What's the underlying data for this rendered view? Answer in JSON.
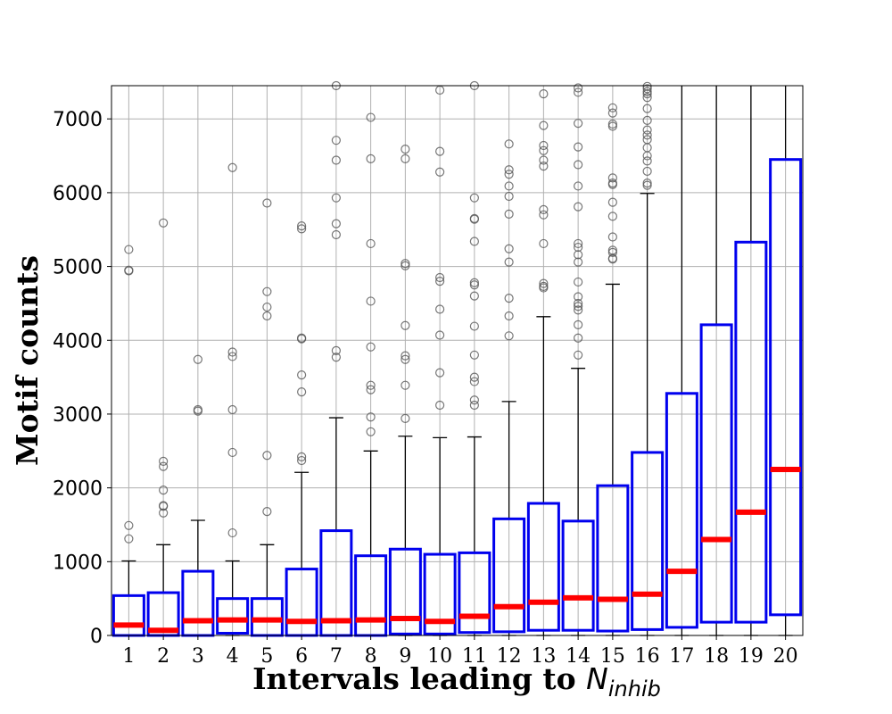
{
  "chart_data": {
    "type": "box",
    "xlabel_prefix": "Intervals leading to ",
    "xlabel_symbol": "N",
    "xlabel_subscript": "inhib",
    "ylabel": "Motif counts",
    "ylim": [
      0,
      7450
    ],
    "yticks": [
      0,
      1000,
      2000,
      3000,
      4000,
      5000,
      6000,
      7000
    ],
    "grid": true,
    "colors": {
      "box": "#0000ee",
      "median": "#ff0000",
      "whisker": "#000000",
      "outlier": "#555555",
      "grid": "#b0b0b0"
    },
    "categories": [
      "1",
      "2",
      "3",
      "4",
      "5",
      "6",
      "7",
      "8",
      "9",
      "10",
      "11",
      "12",
      "13",
      "14",
      "15",
      "16",
      "17",
      "18",
      "19",
      "20"
    ],
    "boxes": [
      {
        "label": "1",
        "q1": 0,
        "median": 140,
        "q3": 540,
        "whislo": 0,
        "whishi": 1010,
        "fliers": [
          1310,
          1490,
          4940,
          4950,
          5230
        ]
      },
      {
        "label": "2",
        "q1": 0,
        "median": 70,
        "q3": 580,
        "whislo": 0,
        "whishi": 1230,
        "fliers": [
          1660,
          1750,
          1760,
          1970,
          2290,
          2360,
          5590
        ]
      },
      {
        "label": "3",
        "q1": 0,
        "median": 200,
        "q3": 870,
        "whislo": 0,
        "whishi": 1560,
        "fliers": [
          3040,
          3060,
          3740
        ]
      },
      {
        "label": "4",
        "q1": 30,
        "median": 210,
        "q3": 500,
        "whislo": 0,
        "whishi": 1010,
        "fliers": [
          1390,
          2480,
          3060,
          3780,
          3840,
          6340
        ]
      },
      {
        "label": "5",
        "q1": 0,
        "median": 210,
        "q3": 500,
        "whislo": 0,
        "whishi": 1230,
        "fliers": [
          1680,
          2440,
          4330,
          4450,
          4660,
          5860
        ]
      },
      {
        "label": "6",
        "q1": 0,
        "median": 190,
        "q3": 900,
        "whislo": 0,
        "whishi": 2210,
        "fliers": [
          2370,
          2420,
          3300,
          3530,
          4020,
          4030,
          5510,
          5550
        ]
      },
      {
        "label": "7",
        "q1": 0,
        "median": 200,
        "q3": 1420,
        "whislo": 0,
        "whishi": 2950,
        "fliers": [
          3770,
          3860,
          5430,
          5580,
          5930,
          6440,
          6710,
          7460
        ]
      },
      {
        "label": "8",
        "q1": 0,
        "median": 210,
        "q3": 1080,
        "whislo": 0,
        "whishi": 2500,
        "fliers": [
          2760,
          2960,
          3330,
          3390,
          3910,
          4530,
          5310,
          6460,
          7020
        ]
      },
      {
        "label": "9",
        "q1": 20,
        "median": 230,
        "q3": 1170,
        "whislo": 0,
        "whishi": 2700,
        "fliers": [
          2940,
          3390,
          3740,
          3790,
          4200,
          5010,
          5040,
          6460,
          6590
        ]
      },
      {
        "label": "10",
        "q1": 20,
        "median": 190,
        "q3": 1100,
        "whislo": 0,
        "whishi": 2680,
        "fliers": [
          3120,
          3560,
          4070,
          4420,
          4800,
          4850,
          6280,
          6560,
          7390
        ]
      },
      {
        "label": "11",
        "q1": 40,
        "median": 260,
        "q3": 1120,
        "whislo": 0,
        "whishi": 2690,
        "fliers": [
          3120,
          3190,
          3440,
          3500,
          3800,
          4190,
          4600,
          4750,
          4780,
          5340,
          5640,
          5650,
          5930,
          7460
        ]
      },
      {
        "label": "12",
        "q1": 50,
        "median": 390,
        "q3": 1580,
        "whislo": 0,
        "whishi": 3170,
        "fliers": [
          4060,
          4330,
          4570,
          5060,
          5240,
          5710,
          5950,
          6090,
          6250,
          6310,
          6660
        ]
      },
      {
        "label": "13",
        "q1": 70,
        "median": 450,
        "q3": 1790,
        "whislo": 0,
        "whishi": 4320,
        "fliers": [
          4710,
          4730,
          4770,
          5310,
          5700,
          5770,
          6360,
          6440,
          6570,
          6640,
          6910,
          7340
        ]
      },
      {
        "label": "14",
        "q1": 70,
        "median": 510,
        "q3": 1550,
        "whislo": 0,
        "whishi": 3620,
        "fliers": [
          3800,
          4030,
          4210,
          4410,
          4460,
          4500,
          4590,
          4790,
          5060,
          5160,
          5260,
          5310,
          5810,
          6090,
          6380,
          6620,
          6940,
          7360,
          7420
        ]
      },
      {
        "label": "15",
        "q1": 60,
        "median": 490,
        "q3": 2030,
        "whislo": 0,
        "whishi": 4760,
        "fliers": [
          5100,
          5110,
          5190,
          5220,
          5400,
          5680,
          5870,
          6110,
          6130,
          6200,
          6900,
          6930,
          7080,
          7150
        ]
      },
      {
        "label": "16",
        "q1": 80,
        "median": 560,
        "q3": 2480,
        "whislo": 0,
        "whishi": 5990,
        "fliers": [
          6100,
          6130,
          6290,
          6430,
          6500,
          6610,
          6720,
          6780,
          6850,
          6980,
          7140,
          7290,
          7340,
          7370,
          7410,
          7440
        ]
      },
      {
        "label": "17",
        "q1": 110,
        "median": 870,
        "q3": 3280,
        "whislo": 0,
        "whishi": 7450,
        "fliers": []
      },
      {
        "label": "18",
        "q1": 180,
        "median": 1300,
        "q3": 4210,
        "whislo": 0,
        "whishi": 7450,
        "fliers": []
      },
      {
        "label": "19",
        "q1": 180,
        "median": 1670,
        "q3": 5330,
        "whislo": 0,
        "whishi": 7450,
        "fliers": []
      },
      {
        "label": "20",
        "q1": 280,
        "median": 2250,
        "q3": 6450,
        "whislo": 0,
        "whishi": 7450,
        "fliers": []
      }
    ]
  }
}
